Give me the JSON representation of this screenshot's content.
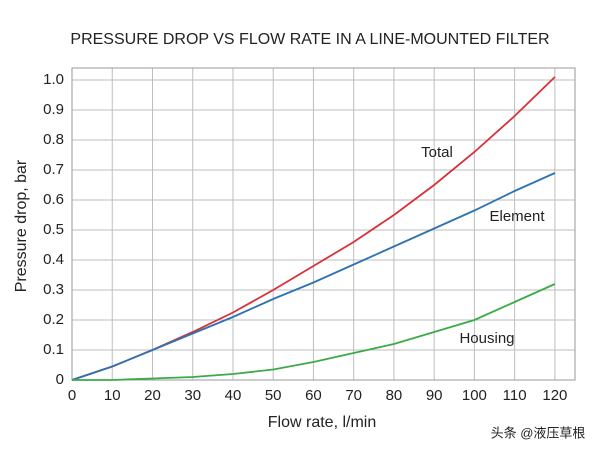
{
  "chart_data": {
    "type": "line",
    "title": "PRESSURE DROP VS FLOW RATE IN A LINE-MOUNTED FILTER",
    "x_label": "Flow rate, l/min",
    "y_label": "Pressure drop, bar",
    "x": [
      0,
      10,
      20,
      30,
      40,
      50,
      60,
      70,
      80,
      90,
      100,
      110,
      120
    ],
    "series": [
      {
        "name": "Total",
        "color": "#d9303a",
        "values": [
          0,
          0.045,
          0.1,
          0.16,
          0.225,
          0.3,
          0.38,
          0.46,
          0.55,
          0.65,
          0.76,
          0.88,
          1.01
        ]
      },
      {
        "name": "Element",
        "color": "#2e72b0",
        "values": [
          0,
          0.045,
          0.1,
          0.155,
          0.21,
          0.27,
          0.325,
          0.385,
          0.445,
          0.505,
          0.565,
          0.63,
          0.69
        ]
      },
      {
        "name": "Housing",
        "color": "#3daa48",
        "values": [
          0,
          0,
          0.005,
          0.01,
          0.02,
          0.035,
          0.06,
          0.09,
          0.12,
          0.16,
          0.2,
          0.26,
          0.32
        ]
      }
    ],
    "xlim": [
      0,
      125
    ],
    "ylim": [
      0,
      1.04
    ],
    "xticks": [
      0,
      10,
      20,
      30,
      40,
      50,
      60,
      70,
      80,
      90,
      100,
      110,
      120
    ],
    "yticks": [
      0,
      0.1,
      0.2,
      0.3,
      0.4,
      0.5,
      0.6,
      0.7,
      0.8,
      0.9,
      {
        "value": 1,
        "label": "1.0"
      }
    ],
    "grid": true,
    "watermark": "头条 @液压草根"
  }
}
